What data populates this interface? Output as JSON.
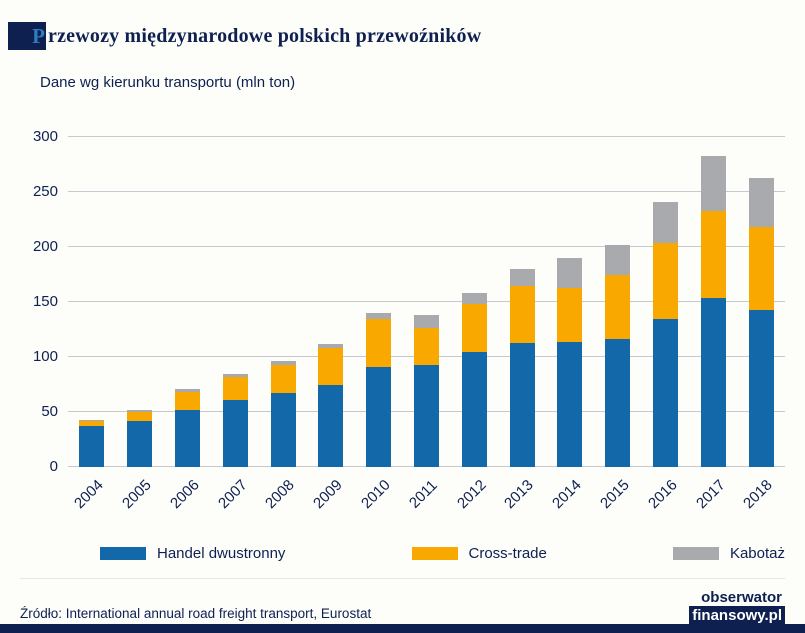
{
  "header": {
    "title_first_letter": "P",
    "title_rest": "rzewozy międzynarodowe polskich przewoźników",
    "subtitle": "Dane wg kierunku transportu (mln ton)"
  },
  "colors": {
    "accent_navy": "#0e2050",
    "gridline": "#c6cad0"
  },
  "chart_data": {
    "type": "bar",
    "stacked": true,
    "title": "Przewozy międzynarodowe polskich przewoźników",
    "subtitle": "Dane wg kierunku transportu (mln ton)",
    "categories": [
      "2004",
      "2005",
      "2006",
      "2007",
      "2008",
      "2009",
      "2010",
      "2011",
      "2012",
      "2013",
      "2014",
      "2015",
      "2016",
      "2017",
      "2018"
    ],
    "series": [
      {
        "name": "Handel dwustronny",
        "color": "#1268a8",
        "values": [
          37,
          42,
          52,
          61,
          67,
          75,
          91,
          93,
          105,
          113,
          114,
          116,
          135,
          154,
          143
        ]
      },
      {
        "name": "Cross-trade",
        "color": "#f9a800",
        "values": [
          5,
          8,
          16,
          21,
          26,
          33,
          44,
          33,
          43,
          52,
          49,
          59,
          69,
          79,
          75
        ]
      },
      {
        "name": "Kabotaż",
        "color": "#a8aaad",
        "values": [
          1,
          2,
          3,
          3,
          3,
          4,
          5,
          12,
          10,
          15,
          27,
          27,
          37,
          50,
          45
        ]
      }
    ],
    "ylim": [
      0,
      300
    ],
    "yticks": [
      0,
      50,
      100,
      150,
      200,
      250,
      300
    ],
    "xlabel": "",
    "ylabel": "mln ton",
    "grid": true,
    "legend_position": "bottom"
  },
  "footer": {
    "source": "Źródło: International annual road freight transport, Eurostat",
    "logo_line1": "obserwator",
    "logo_line2": "finansowy.pl"
  }
}
